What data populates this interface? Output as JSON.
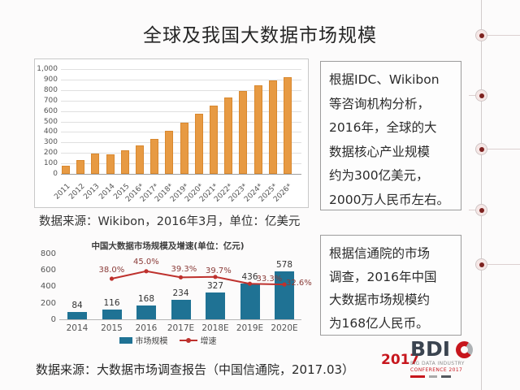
{
  "title": "全球及我国大数据市场规模",
  "captions": {
    "chart1": "数据来源：Wikibon，2016年3月，单位：亿美元",
    "chart2": "数据来源：大数据市场调查报告（中国信通院，2017.03）"
  },
  "chart_data": [
    {
      "type": "bar",
      "title": "",
      "source_note": "数据来源：Wikibon，2016年3月",
      "unit": "亿美元",
      "categories": [
        "2011",
        "2012",
        "2013",
        "2014",
        "2015",
        "2016*",
        "2017*",
        "2018*",
        "2019*",
        "2020*",
        "2021*",
        "2022*",
        "2023*",
        "2024*",
        "2025*",
        "2026*"
      ],
      "values": [
        75,
        128,
        190,
        183,
        225,
        270,
        335,
        410,
        490,
        570,
        650,
        725,
        790,
        845,
        890,
        920
      ],
      "bar_color": "#E79A43",
      "ylim": [
        0,
        1000
      ],
      "ytick_step": 100,
      "grid": true,
      "legend_position": "none"
    },
    {
      "type": "bar+line",
      "title": "中国大数据市场规模及增速(单位：亿元)",
      "unit": "亿元",
      "categories": [
        "2014",
        "2015",
        "2016",
        "2017E",
        "2018E",
        "2019E",
        "2020E"
      ],
      "series": [
        {
          "name": "市场规模",
          "type": "bar",
          "color": "#1F7294",
          "values": [
            84,
            116,
            168,
            234,
            327,
            436,
            578
          ]
        },
        {
          "name": "增速",
          "type": "line",
          "color": "#BE312D",
          "values": [
            null,
            38.0,
            45.0,
            39.3,
            39.7,
            33.3,
            32.6
          ],
          "labels": [
            "",
            "38.0%",
            "45.0%",
            "39.3%",
            "39.7%",
            "33.3%",
            "32.6%"
          ]
        }
      ],
      "ylim": [
        0,
        800
      ],
      "ytick_step": 200,
      "grid": false,
      "legend_position": "bottom"
    }
  ],
  "boxes": {
    "box1": {
      "lines": [
        "根据IDC、Wikibon",
        "等咨询机构分析，",
        "2016年，全球的大",
        "数据核心产业规模",
        "约为300亿美元，",
        "2000万人民币左右。"
      ]
    },
    "box2": {
      "lines": [
        "根据信通院的市场",
        "调查，2016年中国",
        "大数据市场规模约",
        "为168亿人民币。"
      ]
    }
  },
  "logo": {
    "year": "2017",
    "acronym": "BDI",
    "ring_icon": "red-c-swirl-icon",
    "subtitle1": "BIG DATA INDUSTRY",
    "subtitle2": "CONFERENCE 2017"
  },
  "colors": {
    "bar_orange": "#E79A43",
    "bar_blue": "#1F7294",
    "line_red": "#BE312D",
    "logo_red": "#C7161D",
    "logo_navy": "#3B4450"
  }
}
